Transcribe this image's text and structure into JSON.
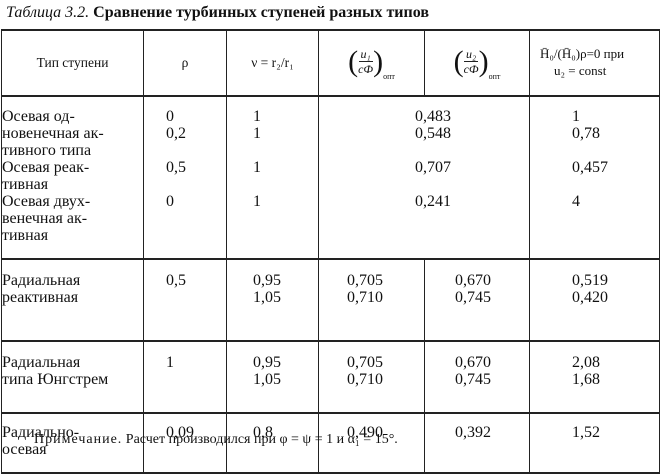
{
  "caption": {
    "number": "Таблица 3.2.",
    "title": "Сравнение турбинных ступеней разных типов"
  },
  "headers": {
    "type": "Тип ступени",
    "rho": "ρ",
    "nu": "ν = r₂/r₁",
    "u1_num": "u₁",
    "u1_den": "cФ",
    "u2_num": "u₂",
    "u2_den": "cФ",
    "opt": "опт",
    "ratio_line1": "H̄₀/(H̄₀)ρ=0 при",
    "ratio_line2": "u₂ = const"
  },
  "rows": [
    {
      "name": [
        "Осевая  од-",
        "новенечная ак-",
        "тивного типа"
      ],
      "rho": [
        "0",
        "0,2"
      ],
      "nu": [
        "1",
        "1"
      ],
      "u1": [
        "0,483",
        "0,548"
      ],
      "u2": [],
      "ratio": [
        "1",
        "0,78"
      ]
    },
    {
      "name": [
        "Осевая реак-",
        "тивная"
      ],
      "rho": [
        "0,5"
      ],
      "nu": [
        "1"
      ],
      "u1": [
        "0,707"
      ],
      "u2": [],
      "ratio": [
        "0,457"
      ]
    },
    {
      "name": [
        "Осевая двух-",
        "венечная  ак-",
        "тивная"
      ],
      "rho": [
        "0"
      ],
      "nu": [
        "1"
      ],
      "u1": [
        "0,241"
      ],
      "u2": [],
      "ratio": [
        "4"
      ]
    },
    {
      "name": [
        "Радиальная",
        "реактивная"
      ],
      "rho": [
        "0,5"
      ],
      "nu": [
        "0,95",
        "1,05"
      ],
      "u1": [
        "0,705",
        "0,710"
      ],
      "u2": [
        "0,670",
        "0,745"
      ],
      "ratio": [
        "0,519",
        "0,420"
      ]
    },
    {
      "name": [
        "Радиальная",
        "типа Юнгстрем"
      ],
      "rho": [
        "1"
      ],
      "nu": [
        "0,95",
        "1,05"
      ],
      "u1": [
        "0,705",
        "0,710"
      ],
      "u2": [
        "0,670",
        "0,745"
      ],
      "ratio": [
        "2,08",
        "1,68"
      ]
    },
    {
      "name": [
        "Радиально-",
        "осевая"
      ],
      "rho": [
        "0,09"
      ],
      "nu": [
        "0,8"
      ],
      "u1": [
        "0,490"
      ],
      "u2": [
        "0,392"
      ],
      "ratio": [
        "1,52"
      ]
    }
  ],
  "note": {
    "label": "Примечание.",
    "text": "Расчет производился при φ = ψ = 1 и α₁ = 15°."
  }
}
